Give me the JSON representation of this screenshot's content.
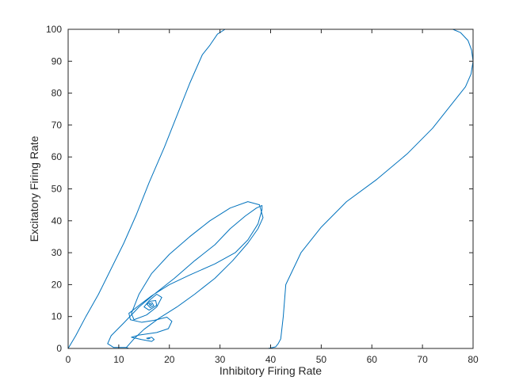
{
  "chart_data": {
    "type": "line",
    "xlabel": "Inhibitory Firing Rate",
    "ylabel": "Excitatory Firing Rate",
    "xlim": [
      0,
      80
    ],
    "ylim": [
      0,
      100
    ],
    "xticks": [
      0,
      10,
      20,
      30,
      40,
      50,
      60,
      70,
      80
    ],
    "yticks": [
      0,
      10,
      20,
      30,
      40,
      50,
      60,
      70,
      80,
      90,
      100
    ],
    "grid": false,
    "line_color": "#0072bd",
    "axis_color": "#262626",
    "series": [
      {
        "points": [
          [
            0,
            0
          ],
          [
            1.5,
            4
          ],
          [
            3.5,
            10
          ],
          [
            6,
            17
          ],
          [
            8.5,
            25
          ],
          [
            11,
            33
          ],
          [
            13.5,
            42
          ],
          [
            16,
            52
          ],
          [
            19,
            63
          ],
          [
            21.5,
            73
          ],
          [
            24,
            83
          ],
          [
            26.5,
            92
          ],
          [
            28,
            95
          ],
          [
            29.5,
            98.5
          ],
          [
            31,
            100
          ],
          [
            45,
            100
          ],
          [
            60,
            100
          ],
          [
            72,
            100
          ],
          [
            76,
            100
          ],
          [
            77.5,
            99
          ],
          [
            79,
            96.5
          ],
          [
            79.7,
            93.5
          ],
          [
            80,
            90
          ],
          [
            79.6,
            86
          ],
          [
            78.5,
            82
          ],
          [
            76,
            77
          ],
          [
            72,
            69
          ],
          [
            67,
            61
          ],
          [
            61,
            53
          ],
          [
            55,
            46
          ],
          [
            50,
            38
          ],
          [
            46,
            30
          ],
          [
            43,
            20
          ],
          [
            42.5,
            10
          ],
          [
            42,
            3
          ],
          [
            41.5,
            1.5
          ],
          [
            41,
            0.5
          ],
          [
            39.5,
            0
          ],
          [
            30,
            0
          ],
          [
            20,
            0
          ],
          [
            12,
            0
          ],
          [
            11.5,
            0.3
          ],
          [
            11,
            0.3
          ],
          [
            9,
            0.3
          ],
          [
            7.8,
            1.5
          ],
          [
            8.5,
            4
          ],
          [
            11,
            8
          ],
          [
            14,
            13
          ],
          [
            17,
            17
          ],
          [
            21,
            22
          ],
          [
            25,
            27.5
          ],
          [
            29,
            32.5
          ],
          [
            32,
            37.5
          ],
          [
            35,
            41.5
          ],
          [
            37.2,
            44
          ],
          [
            38.3,
            44.8
          ],
          [
            38.3,
            43.5
          ],
          [
            37.5,
            39
          ],
          [
            35.5,
            34
          ],
          [
            33,
            30
          ],
          [
            29,
            26.5
          ],
          [
            24,
            23
          ],
          [
            20,
            20
          ],
          [
            16.5,
            16.5
          ],
          [
            14,
            13.5
          ],
          [
            12,
            11
          ],
          [
            12.3,
            9
          ],
          [
            14.5,
            8.2
          ],
          [
            17,
            8.8
          ],
          [
            19.5,
            9.8
          ],
          [
            20.5,
            8.5
          ],
          [
            19.8,
            6.2
          ],
          [
            17.5,
            5
          ],
          [
            14,
            4.2
          ],
          [
            12.5,
            3.5
          ],
          [
            14.5,
            2.8
          ],
          [
            16.5,
            2.2
          ],
          [
            17,
            2.8
          ],
          [
            16.5,
            3.5
          ],
          [
            15.5,
            3.2
          ],
          [
            15.8,
            3
          ],
          [
            16.2,
            3.1
          ]
        ]
      },
      {
        "points": [
          [
            11.5,
            0.3
          ],
          [
            13,
            3
          ],
          [
            15,
            6
          ],
          [
            18,
            9.5
          ],
          [
            21.5,
            13
          ],
          [
            25,
            17
          ],
          [
            29,
            22
          ],
          [
            32.5,
            27.5
          ],
          [
            35.5,
            33
          ],
          [
            37.5,
            37.5
          ],
          [
            38.5,
            41
          ],
          [
            37.8,
            45
          ],
          [
            35.5,
            46
          ],
          [
            32,
            44
          ],
          [
            28,
            40
          ],
          [
            24,
            35
          ],
          [
            20,
            29.5
          ],
          [
            16.5,
            23.5
          ],
          [
            14,
            17
          ],
          [
            12.5,
            11
          ],
          [
            13,
            9
          ],
          [
            15.5,
            10.5
          ],
          [
            17.5,
            13
          ],
          [
            18.5,
            16
          ],
          [
            17.5,
            17
          ],
          [
            16,
            15
          ],
          [
            15,
            13
          ],
          [
            16,
            12
          ],
          [
            17.5,
            13.5
          ],
          [
            17.3,
            15
          ],
          [
            16.2,
            14.8
          ],
          [
            15.6,
            13.8
          ],
          [
            16.2,
            12.8
          ],
          [
            16.9,
            13.4
          ],
          [
            16.6,
            14.3
          ],
          [
            16,
            14
          ],
          [
            16.2,
            13.4
          ],
          [
            16.5,
            13.7
          ],
          [
            16.3,
            13.9
          ]
        ]
      }
    ]
  }
}
